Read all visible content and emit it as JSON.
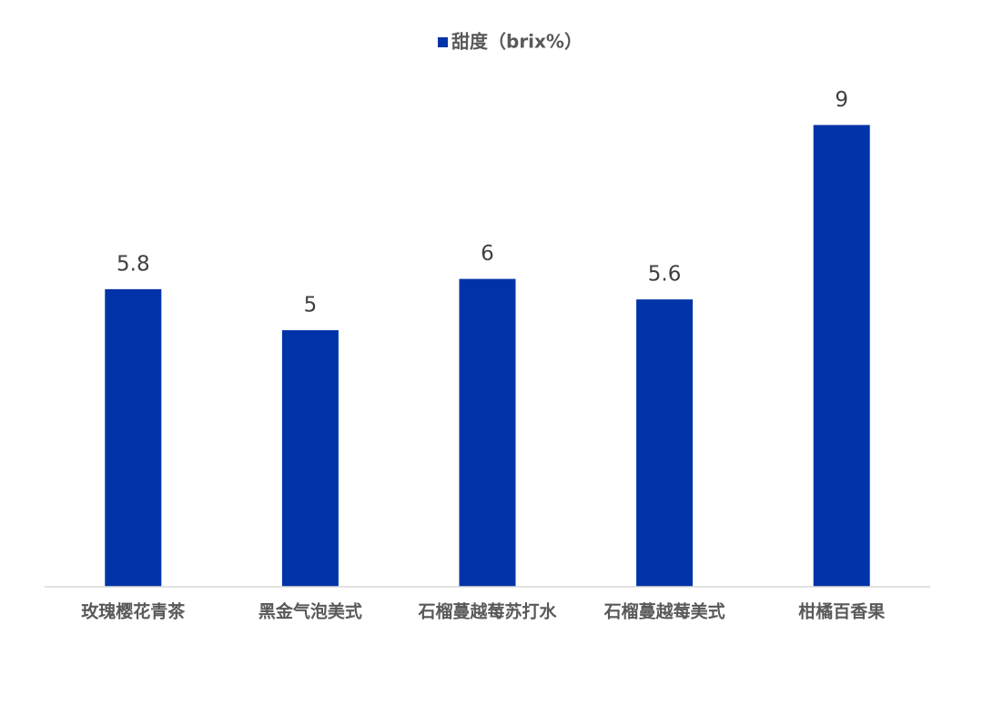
{
  "chart_data": {
    "type": "bar",
    "categories": [
      "玫瑰樱花青茶",
      "黑金气泡美式",
      "石榴蔓越莓苏打水",
      "石榴蔓越莓美式",
      "柑橘百香果"
    ],
    "series": [
      {
        "name": "甜度（brix%）",
        "color": "#0033a8",
        "values": [
          5.8,
          5,
          6,
          5.6,
          9
        ]
      }
    ],
    "ylim": [
      0,
      10
    ],
    "legend": "top",
    "data_labels": true
  }
}
